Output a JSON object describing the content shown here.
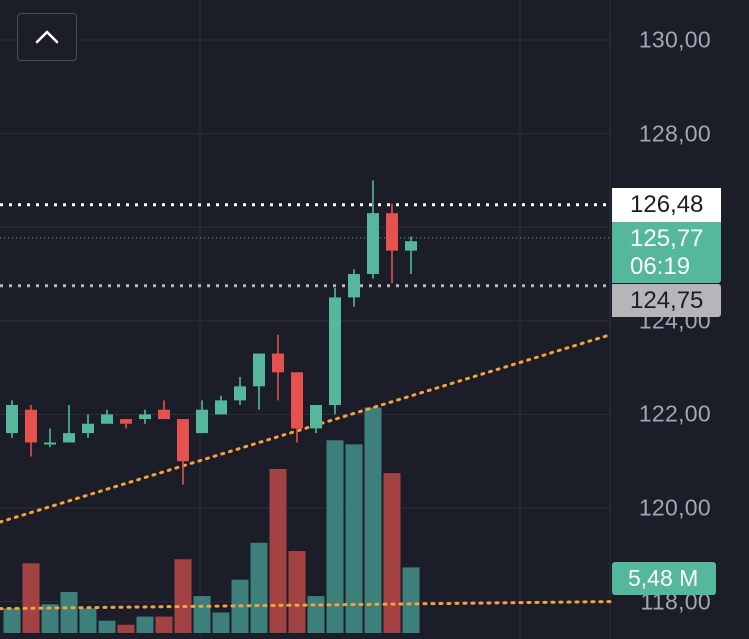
{
  "chart_data": {
    "type": "candlestick",
    "y_axis": {
      "ticks": [
        "130,00",
        "128,00",
        "124,00",
        "122,00",
        "120,00",
        "118,00"
      ],
      "tick_values": [
        130,
        128,
        124,
        122,
        120,
        118
      ],
      "range": [
        117.7,
        130.7
      ],
      "position": "right"
    },
    "candles": [
      {
        "open": 121.6,
        "high": 122.3,
        "low": 121.5,
        "close": 122.2
      },
      {
        "open": 122.1,
        "high": 122.2,
        "low": 121.1,
        "close": 121.4
      },
      {
        "open": 121.4,
        "high": 121.7,
        "low": 121.3,
        "close": 121.4
      },
      {
        "open": 121.4,
        "high": 122.2,
        "low": 121.4,
        "close": 121.6
      },
      {
        "open": 121.6,
        "high": 122.0,
        "low": 121.5,
        "close": 121.8
      },
      {
        "open": 121.8,
        "high": 122.1,
        "low": 121.8,
        "close": 122.0
      },
      {
        "open": 121.9,
        "high": 121.9,
        "low": 121.7,
        "close": 121.8
      },
      {
        "open": 121.9,
        "high": 122.1,
        "low": 121.8,
        "close": 122.0
      },
      {
        "open": 122.1,
        "high": 122.3,
        "low": 121.9,
        "close": 121.9
      },
      {
        "open": 121.9,
        "high": 121.9,
        "low": 120.5,
        "close": 121.0
      },
      {
        "open": 121.6,
        "high": 122.3,
        "low": 121.6,
        "close": 122.1
      },
      {
        "open": 122.0,
        "high": 122.4,
        "low": 122.0,
        "close": 122.3
      },
      {
        "open": 122.3,
        "high": 122.8,
        "low": 122.2,
        "close": 122.6
      },
      {
        "open": 122.6,
        "high": 123.3,
        "low": 122.1,
        "close": 123.3
      },
      {
        "open": 123.3,
        "high": 123.7,
        "low": 122.3,
        "close": 122.9
      },
      {
        "open": 122.9,
        "high": 122.9,
        "low": 121.4,
        "close": 121.7
      },
      {
        "open": 121.7,
        "high": 122.2,
        "low": 121.6,
        "close": 122.2
      },
      {
        "open": 122.2,
        "high": 124.7,
        "low": 122.0,
        "close": 124.5
      },
      {
        "open": 124.5,
        "high": 125.1,
        "low": 124.3,
        "close": 125.0
      },
      {
        "open": 125.0,
        "high": 127.0,
        "low": 124.9,
        "close": 126.3
      },
      {
        "open": 126.3,
        "high": 126.5,
        "low": 124.8,
        "close": 125.5
      },
      {
        "open": 125.5,
        "high": 125.8,
        "low": 125.0,
        "close": 125.7
      }
    ],
    "volume": {
      "values": [
        0.6,
        1.7,
        0.7,
        1.0,
        0.6,
        0.3,
        0.2,
        0.4,
        0.4,
        1.8,
        0.9,
        0.5,
        1.3,
        2.2,
        4.0,
        2.0,
        0.9,
        4.7,
        4.6,
        5.5,
        3.9,
        1.6
      ],
      "current_label": "5,48 M",
      "current_value": 5.48
    },
    "price_markers": {
      "session_high": {
        "value": 126.48,
        "label": "126,48"
      },
      "last_price": {
        "value": 125.77,
        "label": "125,77",
        "countdown": "06:19"
      },
      "session_low": {
        "value": 124.75,
        "label": "124,75"
      }
    },
    "moving_averages": [
      {
        "color": "#f5a33a",
        "points": [
          [
            0,
            119.7
          ],
          [
            22,
            123.7
          ]
        ]
      },
      {
        "color": "#f5a33a",
        "points": [
          [
            0,
            117.85
          ],
          [
            22,
            118.0
          ]
        ]
      }
    ],
    "grid": true,
    "colors": {
      "up": "#55b79c",
      "down": "#e5514c",
      "volume_up": "#3d7f7b",
      "volume_down": "#a34242",
      "background": "#1b1d29",
      "grid": "#2c2f3b",
      "moving_average": "#f5a33a"
    }
  },
  "ui": {
    "collapse_icon": "chevron-up-icon"
  }
}
